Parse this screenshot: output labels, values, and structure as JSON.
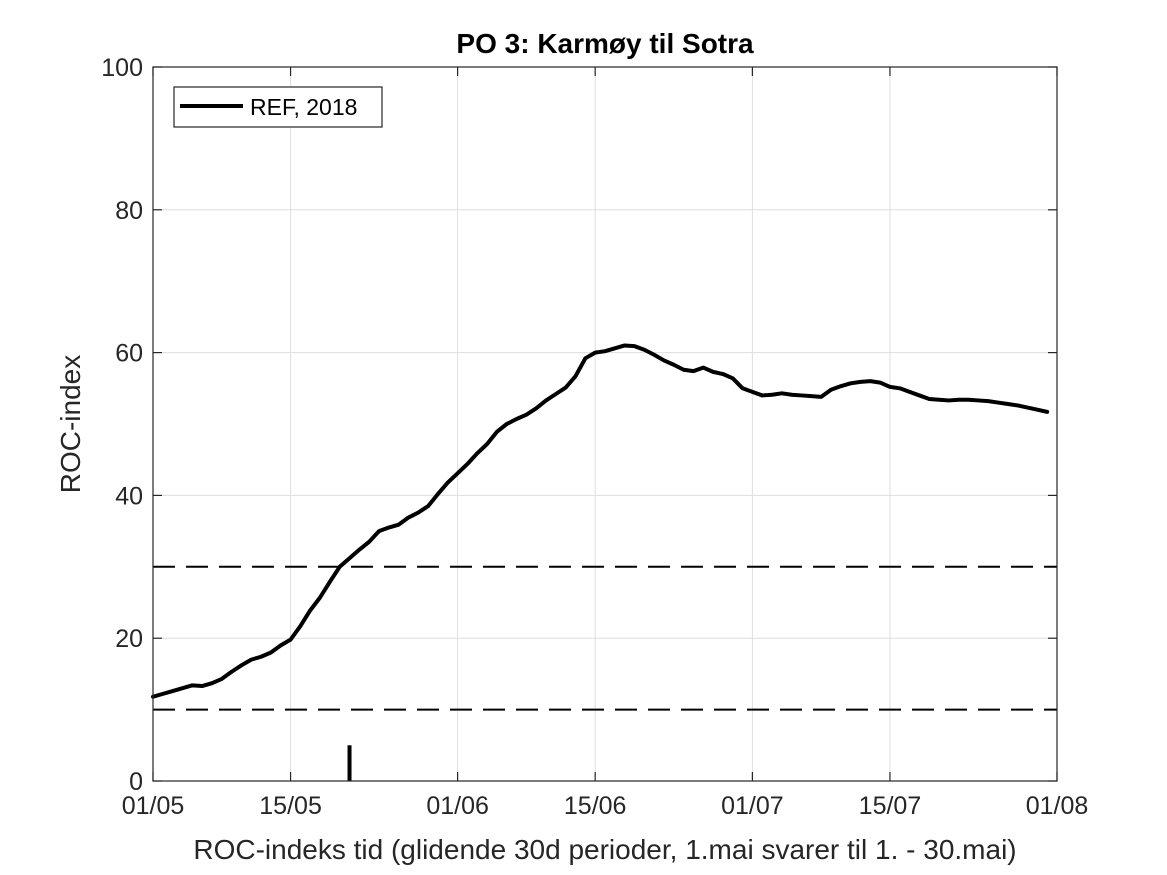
{
  "chart_data": {
    "type": "line",
    "title": "PO 3: Karmøy til Sotra",
    "xlabel": "ROC-indeks tid (glidende 30d perioder, 1.mai svarer til 1. - 30.mai)",
    "ylabel": "ROC-index",
    "x_is_date": true,
    "year": 2018,
    "xlim": [
      "2018-05-01",
      "2018-08-01"
    ],
    "ylim": [
      0,
      100
    ],
    "xticks": [
      {
        "date": "2018-05-01",
        "label": "01/05"
      },
      {
        "date": "2018-05-15",
        "label": "15/05"
      },
      {
        "date": "2018-06-01",
        "label": "01/06"
      },
      {
        "date": "2018-06-15",
        "label": "15/06"
      },
      {
        "date": "2018-07-01",
        "label": "01/07"
      },
      {
        "date": "2018-07-15",
        "label": "15/07"
      },
      {
        "date": "2018-08-01",
        "label": "01/08"
      }
    ],
    "yticks": [
      0,
      20,
      40,
      60,
      80,
      100
    ],
    "grid": true,
    "legend": {
      "placement": "top-left",
      "entries": [
        "REF, 2018"
      ]
    },
    "reference_lines": [
      {
        "y": 30,
        "style": "dashed"
      },
      {
        "y": 10,
        "style": "dashed"
      }
    ],
    "marker": {
      "x": "2018-05-21",
      "y_from": 0,
      "y_to": 5
    },
    "series": [
      {
        "name": "REF, 2018",
        "color": "#000000",
        "x": [
          "2018-05-01",
          "2018-05-02",
          "2018-05-03",
          "2018-05-04",
          "2018-05-05",
          "2018-05-06",
          "2018-05-07",
          "2018-05-08",
          "2018-05-09",
          "2018-05-10",
          "2018-05-11",
          "2018-05-12",
          "2018-05-13",
          "2018-05-14",
          "2018-05-15",
          "2018-05-16",
          "2018-05-17",
          "2018-05-18",
          "2018-05-19",
          "2018-05-20",
          "2018-05-21",
          "2018-05-22",
          "2018-05-23",
          "2018-05-24",
          "2018-05-25",
          "2018-05-26",
          "2018-05-27",
          "2018-05-28",
          "2018-05-29",
          "2018-05-30",
          "2018-05-31",
          "2018-06-01",
          "2018-06-02",
          "2018-06-03",
          "2018-06-04",
          "2018-06-05",
          "2018-06-06",
          "2018-06-07",
          "2018-06-08",
          "2018-06-09",
          "2018-06-10",
          "2018-06-11",
          "2018-06-12",
          "2018-06-13",
          "2018-06-14",
          "2018-06-15",
          "2018-06-16",
          "2018-06-17",
          "2018-06-18",
          "2018-06-19",
          "2018-06-20",
          "2018-06-21",
          "2018-06-22",
          "2018-06-23",
          "2018-06-24",
          "2018-06-25",
          "2018-06-26",
          "2018-06-27",
          "2018-06-28",
          "2018-06-29",
          "2018-06-30",
          "2018-07-01",
          "2018-07-02",
          "2018-07-03",
          "2018-07-04",
          "2018-07-05",
          "2018-07-06",
          "2018-07-07",
          "2018-07-08",
          "2018-07-09",
          "2018-07-10",
          "2018-07-11",
          "2018-07-12",
          "2018-07-13",
          "2018-07-14",
          "2018-07-15",
          "2018-07-16",
          "2018-07-17",
          "2018-07-18",
          "2018-07-19",
          "2018-07-20",
          "2018-07-21",
          "2018-07-22",
          "2018-07-23",
          "2018-07-24",
          "2018-07-25",
          "2018-07-26",
          "2018-07-27",
          "2018-07-28",
          "2018-07-29",
          "2018-07-30",
          "2018-07-31"
        ],
        "values": [
          11.8,
          12.2,
          12.6,
          13.0,
          13.4,
          13.3,
          13.7,
          14.3,
          15.3,
          16.2,
          17.0,
          17.4,
          18.0,
          19.0,
          19.8,
          21.7,
          23.9,
          25.7,
          27.9,
          30.0,
          31.2,
          32.4,
          33.5,
          35.0,
          35.5,
          35.9,
          36.9,
          37.6,
          38.5,
          40.2,
          41.8,
          43.1,
          44.4,
          45.9,
          47.2,
          48.9,
          50.0,
          50.7,
          51.3,
          52.2,
          53.3,
          54.2,
          55.1,
          56.7,
          59.2,
          60.0,
          60.2,
          60.6,
          61.0,
          60.9,
          60.4,
          59.7,
          58.9,
          58.3,
          57.6,
          57.4,
          57.9,
          57.3,
          57.0,
          56.4,
          55.0,
          54.5,
          54.0,
          54.1,
          54.3,
          54.1,
          54.0,
          53.9,
          53.8,
          54.8,
          55.3,
          55.7,
          55.9,
          56.0,
          55.8,
          55.2,
          55.0,
          54.5,
          54.0,
          53.5,
          53.4,
          53.3,
          53.4,
          53.4,
          53.3,
          53.2,
          53.0,
          52.8,
          52.6,
          52.3,
          52.0,
          51.7
        ]
      }
    ]
  }
}
